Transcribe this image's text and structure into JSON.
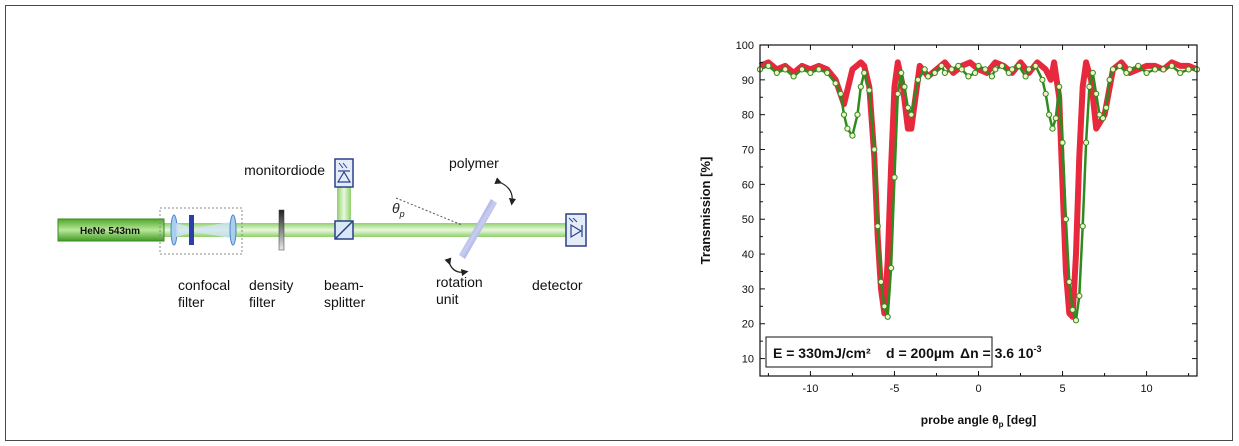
{
  "setup": {
    "source_label": "HeNe 543nm",
    "monitor_label": "monitordiode",
    "polymer_label": "polymer",
    "angle_symbol": "θ",
    "angle_subscript": "p",
    "confocal_line1": "confocal",
    "confocal_line2": "filter",
    "density_line1": "density",
    "density_line2": "filter",
    "beamsplitter_line1": "beam-",
    "beamsplitter_line2": "splitter",
    "rotation_line1": "rotation",
    "rotation_line2": "unit",
    "detector_label": "detector"
  },
  "chart_data": {
    "type": "line",
    "ylabel": "Transmission [%]",
    "xlabel_main": "probe angle θ",
    "xlabel_sub": "p",
    "xlabel_unit": " [deg]",
    "annotation": {
      "energy": "E = 330mJ/cm²",
      "thickness": "d = 200µm",
      "dn_base": "Δn = 3.6 10",
      "dn_exp": "-3"
    },
    "xlim": [
      -13,
      13
    ],
    "ylim": [
      5,
      100
    ],
    "xticks": [
      -10,
      -5,
      0,
      5,
      10
    ],
    "yticks": [
      10,
      20,
      30,
      40,
      50,
      60,
      70,
      80,
      90,
      100
    ],
    "grid": false,
    "colors": {
      "theory": "#e8283c",
      "measurement": "#2e8b1e",
      "marker_fill": "#f4f2c8"
    },
    "series": [
      {
        "style": "line",
        "x": [
          -13,
          -12.5,
          -12,
          -11.5,
          -11,
          -10.5,
          -10,
          -9.5,
          -9,
          -8.5,
          -8,
          -7.5,
          -7,
          -6.8,
          -6.5,
          -6.2,
          -6,
          -5.8,
          -5.6,
          -5.4,
          -5.2,
          -5,
          -4.8,
          -4.5,
          -4.2,
          -4,
          -3.5,
          -3,
          -2.5,
          -2,
          -1.5,
          -1,
          -0.5,
          0,
          0.5,
          1,
          1.5,
          2,
          2.5,
          3,
          3.5,
          4,
          4.3,
          4.5,
          4.8,
          5,
          5.2,
          5.4,
          5.6,
          5.8,
          6,
          6.2,
          6.4,
          6.7,
          7,
          7.5,
          8,
          8.5,
          9,
          9.5,
          10,
          10.5,
          11,
          11.5,
          12,
          12.5,
          13
        ],
        "y": [
          94,
          95,
          93,
          94,
          92,
          94,
          93,
          94,
          93,
          90,
          83,
          93,
          95,
          94,
          88,
          68,
          45,
          30,
          23,
          38,
          65,
          88,
          95,
          88,
          76,
          76,
          94,
          91,
          93,
          95,
          92,
          94,
          95,
          93,
          92,
          95,
          94,
          92,
          95,
          92,
          95,
          93,
          90,
          95,
          85,
          60,
          35,
          23,
          22,
          40,
          68,
          88,
          95,
          90,
          76,
          80,
          93,
          95,
          92,
          93,
          94,
          94,
          93,
          95,
          94,
          94,
          93
        ]
      },
      {
        "style": "line+markers",
        "x": [
          -13,
          -12.5,
          -12,
          -11.5,
          -11,
          -10.5,
          -10,
          -9.5,
          -9,
          -8.5,
          -8.2,
          -8,
          -7.8,
          -7.5,
          -7.2,
          -7,
          -6.8,
          -6.5,
          -6.2,
          -6,
          -5.8,
          -5.6,
          -5.4,
          -5.2,
          -5,
          -4.8,
          -4.6,
          -4.4,
          -4.2,
          -4,
          -3.6,
          -3.2,
          -3,
          -2.6,
          -2.2,
          -2,
          -1.6,
          -1.2,
          -1,
          -0.6,
          -0.2,
          0,
          0.4,
          0.8,
          1,
          1.4,
          1.8,
          2,
          2.4,
          2.8,
          3,
          3.4,
          3.8,
          4,
          4.2,
          4.4,
          4.6,
          4.8,
          5,
          5.2,
          5.4,
          5.6,
          5.8,
          6,
          6.2,
          6.4,
          6.6,
          6.8,
          7,
          7.2,
          7.4,
          7.6,
          7.8,
          8,
          8.4,
          8.8,
          9,
          9.5,
          10,
          10.5,
          11,
          11.5,
          12,
          12.5,
          13
        ],
        "y": [
          93,
          94,
          92,
          93,
          91,
          93,
          92,
          93,
          92,
          89,
          86,
          80,
          76,
          74,
          80,
          88,
          92,
          87,
          70,
          48,
          32,
          25,
          22,
          36,
          62,
          86,
          92,
          88,
          82,
          80,
          90,
          93,
          91,
          92,
          94,
          92,
          93,
          94,
          93,
          91,
          92,
          94,
          93,
          91,
          93,
          94,
          92,
          93,
          94,
          91,
          93,
          94,
          90,
          86,
          80,
          76,
          79,
          88,
          72,
          50,
          32,
          24,
          21,
          28,
          48,
          72,
          88,
          92,
          86,
          80,
          79,
          82,
          90,
          93,
          94,
          92,
          93,
          94,
          92,
          93,
          93,
          94,
          92,
          93,
          93
        ]
      }
    ]
  }
}
